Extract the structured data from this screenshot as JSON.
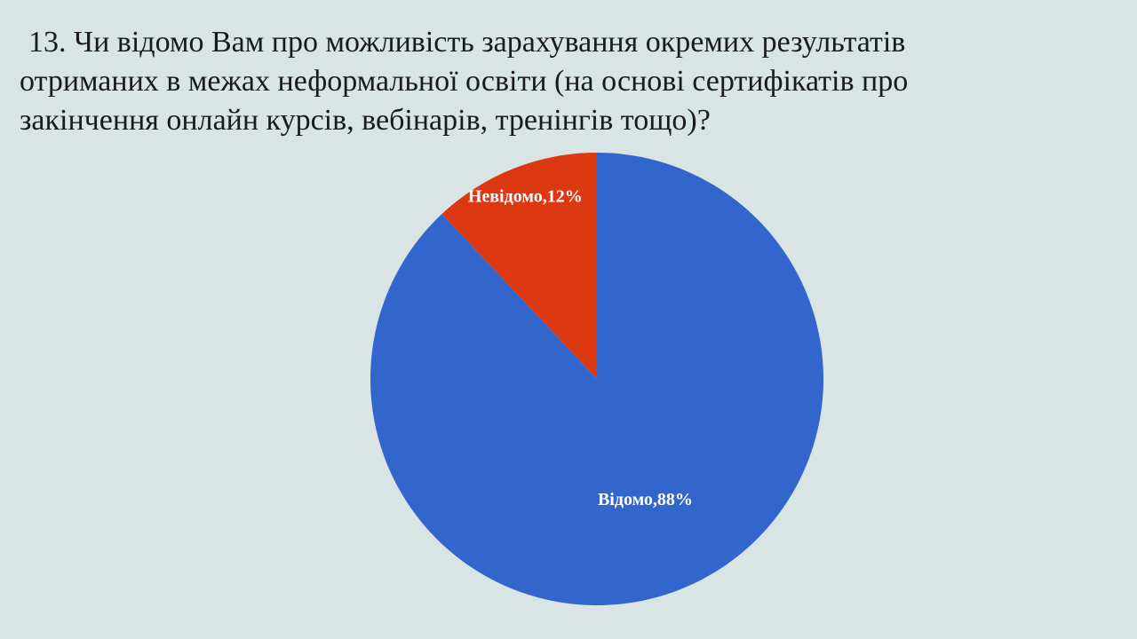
{
  "slide": {
    "title_lines": [
      "13. Чи відомо Вам про можливість зарахування окремих результатів",
      "отриманих в межах неформальної освіти (на основі сертифікатів про",
      "закінчення онлайн курсів, вебінарів, тренінгів тощо)?"
    ]
  },
  "chart_data": {
    "type": "pie",
    "title": "",
    "slices": [
      {
        "name": "Невідомо",
        "value": 12,
        "label": "Невідомо,12%",
        "color": "#dc3912"
      },
      {
        "name": "Відомо",
        "value": 88,
        "label": "Відомо,88%",
        "color": "#3366cc"
      }
    ],
    "legend": "none",
    "start": "top",
    "direction": "counterclockwise"
  }
}
